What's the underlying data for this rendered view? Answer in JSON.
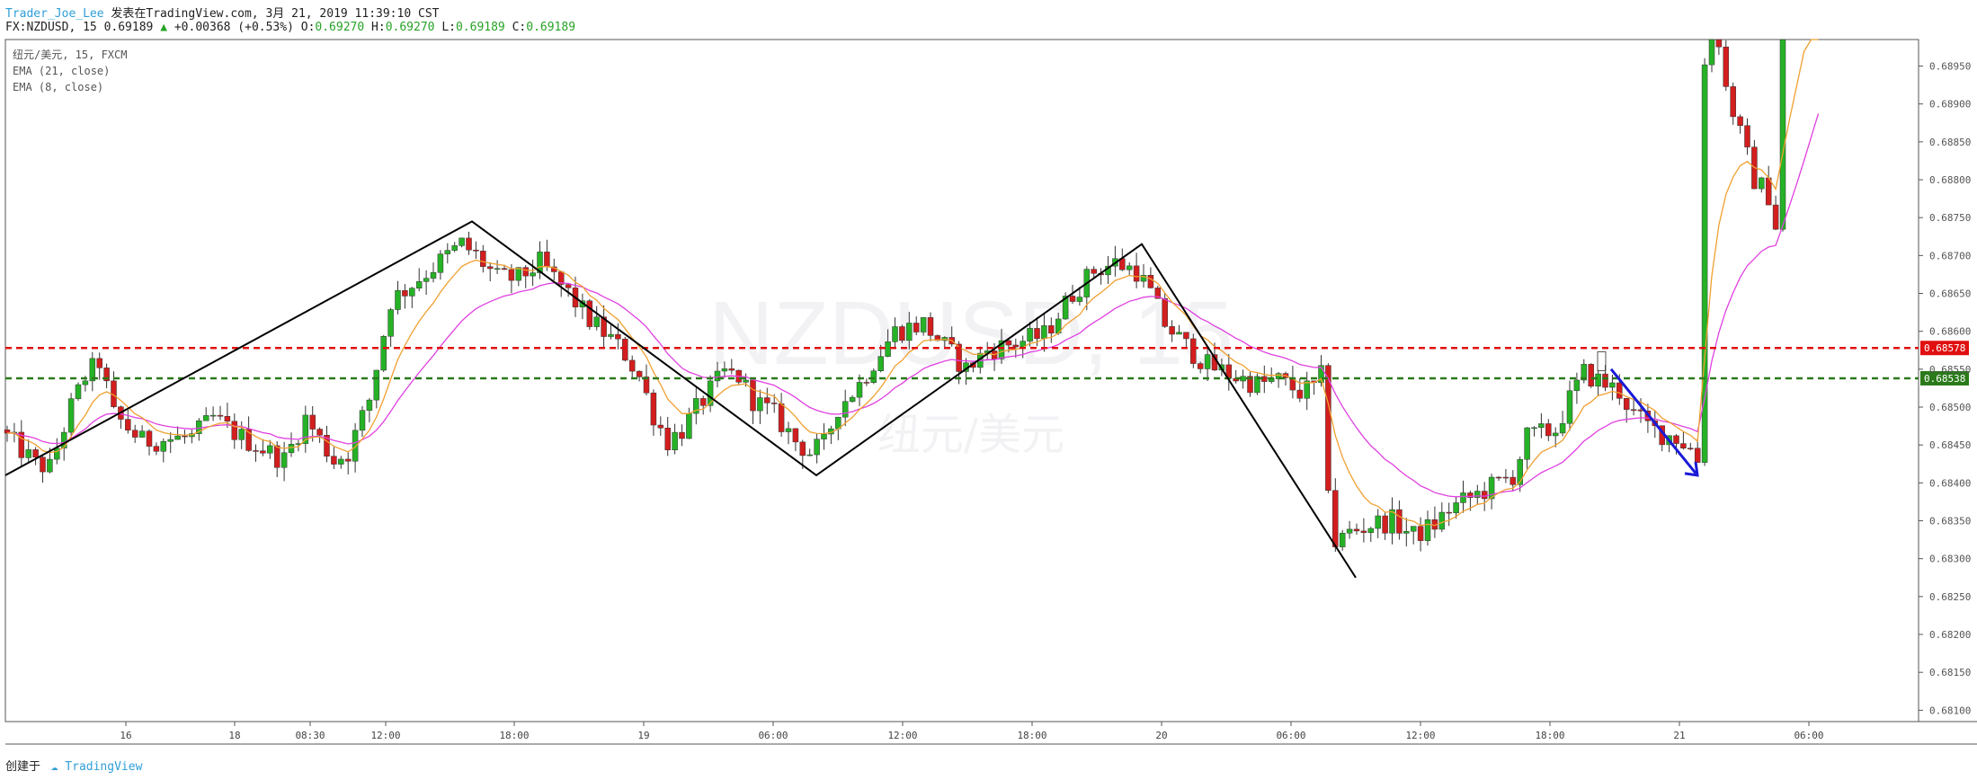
{
  "header": {
    "author": "Trader_Joe_Lee",
    "published": "发表在TradingView.com, 3月 21, 2019 11:39:10 CST",
    "symbol": "FX:NZDUSD, 15",
    "last": "0.69189",
    "arrow": "▲",
    "change": "+0.00368 (+0.53%)",
    "o_label": "O:",
    "o": "0.69270",
    "h_label": "H:",
    "h": "0.69270",
    "l_label": "L:",
    "l": "0.69189",
    "c_label": "C:",
    "c": "0.69189"
  },
  "legend": {
    "line1": "纽元/美元, 15, FXCM",
    "line2": "EMA (21, close)",
    "line3": "EMA (8, close)"
  },
  "watermark": {
    "big": "NZDUSD, 15",
    "small": "纽元/美元"
  },
  "footer": {
    "created": "创建于",
    "brand": "TradingView"
  },
  "colors": {
    "up_candle": "#26b226",
    "down_candle": "#d21e1e",
    "ema21": "#e040e0",
    "ema8": "#f0a030",
    "resistance": "#e01010",
    "support": "#2a7a1a",
    "zigzag": "#000000",
    "arrow": "#1a1ad8"
  },
  "chart_data": {
    "type": "candlestick",
    "symbol": "FX:NZDUSD",
    "timeframe": "15",
    "ylim": [
      0.68085,
      0.68985
    ],
    "y_ticks": [
      "0.68950",
      "0.68900",
      "0.68850",
      "0.68800",
      "0.68750",
      "0.68700",
      "0.68650",
      "0.68600",
      "0.68550",
      "0.68500",
      "0.68450",
      "0.68400",
      "0.68350",
      "0.68300",
      "0.68250",
      "0.68200",
      "0.68150",
      "0.68100"
    ],
    "x_ticks": [
      "16",
      "18",
      "08:30",
      "12:00",
      "18:00",
      "19",
      "06:00",
      "12:00",
      "18:00",
      "20",
      "06:00",
      "12:00",
      "18:00",
      "21",
      "06:00"
    ],
    "horizontal_lines": [
      {
        "name": "resistance",
        "value": 0.68578,
        "label": "0.68578",
        "color": "#e01010"
      },
      {
        "name": "support",
        "value": 0.68538,
        "label": "0.68538",
        "color": "#2a7a1a"
      }
    ],
    "zigzag_prices": [
      0.6841,
      0.68745,
      0.6841,
      0.68715,
      0.68275
    ],
    "arrow_prices": {
      "from": 0.6855,
      "to": 0.6841
    },
    "path_knots": [
      [
        0,
        0.6847
      ],
      [
        5,
        0.68425
      ],
      [
        7,
        0.6842
      ],
      [
        10,
        0.685
      ],
      [
        12,
        0.6854
      ],
      [
        14,
        0.6856
      ],
      [
        16,
        0.6849
      ],
      [
        20,
        0.68455
      ],
      [
        27,
        0.6846
      ],
      [
        30,
        0.68485
      ],
      [
        34,
        0.6846
      ],
      [
        40,
        0.6843
      ],
      [
        43,
        0.68485
      ],
      [
        47,
        0.6843
      ],
      [
        49,
        0.6844
      ],
      [
        52,
        0.6851
      ],
      [
        55,
        0.6864
      ],
      [
        59,
        0.6867
      ],
      [
        63,
        0.687
      ],
      [
        65,
        0.68715
      ],
      [
        67,
        0.687
      ],
      [
        70,
        0.6867
      ],
      [
        73,
        0.6867
      ],
      [
        76,
        0.6869
      ],
      [
        80,
        0.6865
      ],
      [
        83,
        0.68615
      ],
      [
        86,
        0.6859
      ],
      [
        88,
        0.6857
      ],
      [
        90,
        0.6854
      ],
      [
        92,
        0.6849
      ],
      [
        94,
        0.68455
      ],
      [
        96,
        0.6847
      ],
      [
        99,
        0.6851
      ],
      [
        102,
        0.68545
      ],
      [
        104,
        0.6854
      ],
      [
        106,
        0.6851
      ],
      [
        109,
        0.6849
      ],
      [
        112,
        0.68455
      ],
      [
        114,
        0.6844
      ],
      [
        116,
        0.6845
      ],
      [
        118,
        0.685
      ],
      [
        121,
        0.6853
      ],
      [
        123,
        0.6856
      ],
      [
        126,
        0.686
      ],
      [
        130,
        0.6861
      ],
      [
        133,
        0.6858
      ],
      [
        136,
        0.6855
      ],
      [
        139,
        0.68575
      ],
      [
        143,
        0.68585
      ],
      [
        147,
        0.68595
      ],
      [
        151,
        0.6865
      ],
      [
        154,
        0.6868
      ],
      [
        157,
        0.6869
      ],
      [
        160,
        0.6868
      ],
      [
        162,
        0.6865
      ],
      [
        164,
        0.6861
      ],
      [
        167,
        0.6858
      ],
      [
        170,
        0.68555
      ],
      [
        174,
        0.6854
      ],
      [
        177,
        0.6853
      ],
      [
        180,
        0.68535
      ],
      [
        183,
        0.6852
      ],
      [
        185,
        0.68525
      ],
      [
        186,
        0.6854
      ],
      [
        187,
        0.684
      ],
      [
        188,
        0.6832
      ],
      [
        190,
        0.68335
      ],
      [
        193,
        0.68345
      ],
      [
        196,
        0.6835
      ],
      [
        199,
        0.6833
      ],
      [
        202,
        0.68345
      ],
      [
        204,
        0.68365
      ],
      [
        207,
        0.6838
      ],
      [
        210,
        0.68395
      ],
      [
        213,
        0.6841
      ],
      [
        215,
        0.6846
      ],
      [
        217,
        0.68465
      ],
      [
        219,
        0.6847
      ],
      [
        221,
        0.6851
      ],
      [
        223,
        0.68545
      ],
      [
        226,
        0.6853
      ],
      [
        228,
        0.6852
      ],
      [
        230,
        0.6849
      ],
      [
        232,
        0.68475
      ],
      [
        234,
        0.68465
      ],
      [
        236,
        0.6846
      ],
      [
        238,
        0.68445
      ],
      [
        239,
        0.6843
      ],
      [
        240,
        0.6896
      ],
      [
        241,
        0.6905
      ],
      [
        243,
        0.6892
      ],
      [
        245,
        0.6886
      ],
      [
        247,
        0.688
      ],
      [
        249,
        0.6878
      ],
      [
        250,
        0.6874
      ],
      [
        251,
        0.69
      ],
      [
        256,
        0.692
      ]
    ]
  }
}
